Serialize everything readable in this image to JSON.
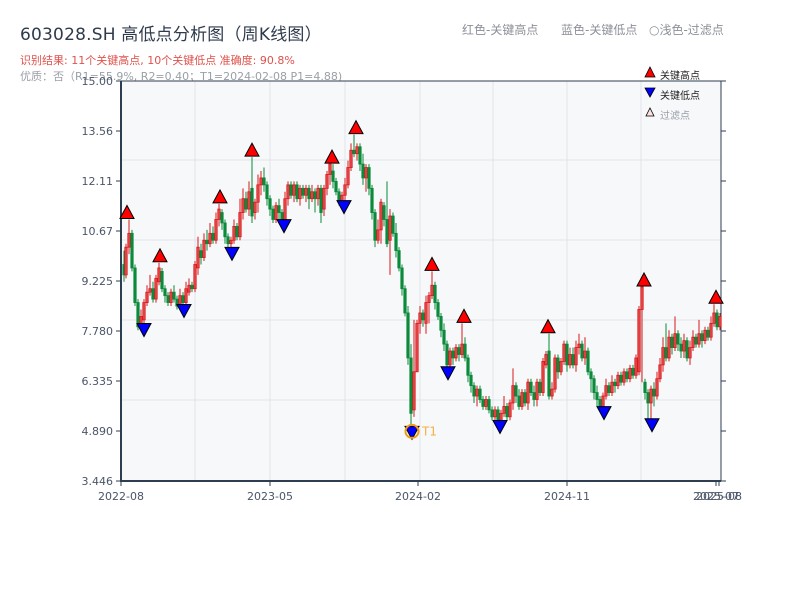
{
  "header": {
    "title": "603028.SH 高低点分析图（周K线图）",
    "result_line": "识别结果: 11个关键高点, 10个关键低点  准确度: 90.8%",
    "quality_line": "优质：否（R1=55.9%, R2=0.40；T1=2024-02-08 P1=4.88)"
  },
  "top_legend": {
    "red": "红色-关键高点",
    "blue": "蓝色-关键低点",
    "light": "○浅色-过滤点"
  },
  "colors": {
    "up": "#d7191c",
    "down": "#0a8a3a",
    "high_marker": "#ff0000",
    "low_marker": "#0000ff",
    "t1_ring": "#f39c12",
    "plot_bg": "#f7f8fa",
    "grid": "#e1e4e8",
    "axis": "#2c3e50"
  },
  "chart_data": {
    "type": "candlestick",
    "title": "603028.SH 高低点分析图（周K线图）",
    "xlabel": "",
    "ylabel": "",
    "ylim": [
      3.446,
      15.0
    ],
    "y_ticks": [
      "15.00",
      "13.56",
      "12.11",
      "10.67",
      "9.225",
      "7.780",
      "6.335",
      "4.890",
      "3.446"
    ],
    "x_ticks": [
      "2022-08",
      "2023-05",
      "2024-02",
      "2024-11",
      "2025-07",
      "2025-08"
    ],
    "legend": [
      {
        "label": "关键高点",
        "marker": "red-up-triangle"
      },
      {
        "label": "关键低点",
        "marker": "blue-down-triangle"
      },
      {
        "label": "过滤点",
        "marker": "light-up-triangle"
      }
    ],
    "annotations": [
      {
        "label": "T1",
        "date": "2024-02-08",
        "price": 4.88
      }
    ],
    "key_highs": [
      {
        "x": 127,
        "price": 11.0
      },
      {
        "x": 160,
        "price": 9.75
      },
      {
        "x": 220,
        "price": 11.45
      },
      {
        "x": 252,
        "price": 12.8
      },
      {
        "x": 332,
        "price": 12.6
      },
      {
        "x": 356,
        "price": 13.45
      },
      {
        "x": 432,
        "price": 9.5
      },
      {
        "x": 464,
        "price": 8.0
      },
      {
        "x": 548,
        "price": 7.7
      },
      {
        "x": 644,
        "price": 9.05
      },
      {
        "x": 716,
        "price": 8.55
      }
    ],
    "key_lows": [
      {
        "x": 144,
        "price": 7.85
      },
      {
        "x": 184,
        "price": 8.4
      },
      {
        "x": 232,
        "price": 10.05
      },
      {
        "x": 284,
        "price": 10.85
      },
      {
        "x": 344,
        "price": 11.4
      },
      {
        "x": 412,
        "price": 4.88
      },
      {
        "x": 448,
        "price": 6.6
      },
      {
        "x": 500,
        "price": 5.05
      },
      {
        "x": 604,
        "price": 5.45
      },
      {
        "x": 652,
        "price": 5.1
      }
    ],
    "candles": [
      [
        124,
        9.7,
        9.4,
        10.1,
        9.2
      ],
      [
        126,
        9.4,
        10.2,
        10.3,
        9.3
      ],
      [
        129,
        10.2,
        10.6,
        11.0,
        10.0
      ],
      [
        132,
        10.6,
        9.6,
        10.7,
        9.5
      ],
      [
        135,
        9.6,
        8.6,
        9.7,
        8.5
      ],
      [
        138,
        8.6,
        7.9,
        8.7,
        7.8
      ],
      [
        141,
        7.9,
        8.2,
        8.4,
        7.8
      ],
      [
        144,
        8.1,
        8.6,
        8.7,
        8.0
      ],
      [
        147,
        8.6,
        8.9,
        9.1,
        8.5
      ],
      [
        150,
        8.9,
        9.0,
        9.4,
        8.8
      ],
      [
        153,
        9.0,
        8.7,
        9.2,
        8.6
      ],
      [
        156,
        8.7,
        9.3,
        9.4,
        8.6
      ],
      [
        159,
        9.2,
        9.6,
        9.75,
        9.1
      ],
      [
        162,
        9.5,
        9.0,
        9.6,
        8.9
      ],
      [
        165,
        9.0,
        8.8,
        9.1,
        8.6
      ],
      [
        168,
        8.8,
        8.6,
        8.9,
        8.5
      ],
      [
        171,
        8.6,
        8.9,
        9.0,
        8.5
      ],
      [
        174,
        8.9,
        8.7,
        9.1,
        8.6
      ],
      [
        177,
        8.7,
        8.5,
        8.8,
        8.4
      ],
      [
        180,
        8.5,
        8.8,
        9.0,
        8.4
      ],
      [
        183,
        8.8,
        8.6,
        8.9,
        8.4
      ],
      [
        186,
        8.6,
        9.0,
        9.2,
        8.5
      ],
      [
        189,
        8.9,
        9.1,
        9.3,
        8.8
      ],
      [
        192,
        9.1,
        9.0,
        9.2,
        8.9
      ],
      [
        195,
        9.0,
        9.7,
        9.8,
        8.9
      ],
      [
        198,
        9.6,
        10.2,
        10.5,
        9.4
      ],
      [
        201,
        10.1,
        9.9,
        10.3,
        9.7
      ],
      [
        204,
        9.9,
        10.4,
        10.6,
        9.8
      ],
      [
        207,
        10.4,
        10.3,
        10.7,
        10.1
      ],
      [
        210,
        10.3,
        10.6,
        10.9,
        10.2
      ],
      [
        213,
        10.6,
        10.4,
        10.8,
        10.3
      ],
      [
        216,
        10.4,
        11.0,
        11.2,
        10.3
      ],
      [
        219,
        11.0,
        11.3,
        11.45,
        10.8
      ],
      [
        222,
        11.2,
        10.9,
        11.3,
        10.7
      ],
      [
        225,
        10.9,
        10.5,
        11.0,
        10.3
      ],
      [
        228,
        10.5,
        10.3,
        10.6,
        10.1
      ],
      [
        231,
        10.3,
        10.4,
        10.5,
        10.05
      ],
      [
        234,
        10.4,
        10.8,
        11.0,
        10.3
      ],
      [
        237,
        10.8,
        10.5,
        10.9,
        10.4
      ],
      [
        240,
        10.5,
        11.2,
        11.6,
        10.4
      ],
      [
        243,
        11.2,
        11.6,
        11.9,
        11.0
      ],
      [
        246,
        11.6,
        11.3,
        11.8,
        11.2
      ],
      [
        249,
        11.3,
        11.8,
        12.1,
        11.1
      ],
      [
        252,
        11.9,
        11.1,
        12.8,
        10.9
      ],
      [
        255,
        11.2,
        11.5,
        11.6,
        11.0
      ],
      [
        258,
        11.5,
        12.0,
        12.3,
        11.2
      ],
      [
        261,
        12.0,
        12.2,
        12.4,
        11.7
      ],
      [
        264,
        12.2,
        12.0,
        12.5,
        11.8
      ],
      [
        267,
        12.0,
        11.6,
        12.1,
        11.4
      ],
      [
        270,
        11.6,
        11.3,
        11.7,
        11.1
      ],
      [
        273,
        11.3,
        11.0,
        11.4,
        10.9
      ],
      [
        276,
        11.0,
        11.4,
        11.5,
        10.9
      ],
      [
        279,
        11.4,
        11.2,
        11.6,
        11.0
      ],
      [
        282,
        11.2,
        11.0,
        11.3,
        10.85
      ],
      [
        285,
        11.0,
        11.6,
        11.8,
        10.9
      ],
      [
        288,
        11.6,
        12.0,
        12.1,
        11.4
      ],
      [
        291,
        12.0,
        11.7,
        12.1,
        11.6
      ],
      [
        294,
        11.7,
        12.0,
        12.1,
        11.5
      ],
      [
        297,
        12.0,
        11.6,
        12.1,
        11.5
      ],
      [
        300,
        11.6,
        11.9,
        12.0,
        11.4
      ],
      [
        303,
        11.9,
        11.7,
        12.0,
        11.6
      ],
      [
        306,
        11.7,
        11.9,
        12.0,
        11.5
      ],
      [
        309,
        11.9,
        11.6,
        12.0,
        11.3
      ],
      [
        312,
        11.6,
        11.8,
        12.0,
        11.5
      ],
      [
        315,
        11.8,
        11.6,
        11.9,
        11.2
      ],
      [
        318,
        11.6,
        11.9,
        12.0,
        11.4
      ],
      [
        321,
        11.9,
        11.2,
        12.0,
        10.9
      ],
      [
        324,
        11.3,
        11.9,
        12.0,
        11.1
      ],
      [
        327,
        11.9,
        12.3,
        12.4,
        11.7
      ],
      [
        330,
        12.3,
        12.6,
        12.6,
        12.0
      ],
      [
        333,
        12.4,
        12.1,
        12.6,
        11.9
      ],
      [
        336,
        12.1,
        11.8,
        12.2,
        11.7
      ],
      [
        339,
        11.8,
        11.5,
        11.9,
        11.4
      ],
      [
        342,
        11.5,
        11.7,
        11.8,
        11.4
      ],
      [
        345,
        11.7,
        12.0,
        12.2,
        11.4
      ],
      [
        348,
        12.0,
        12.5,
        12.7,
        11.9
      ],
      [
        351,
        12.5,
        13.0,
        13.2,
        12.4
      ],
      [
        354,
        13.0,
        12.9,
        13.45,
        12.8
      ],
      [
        357,
        12.9,
        13.1,
        13.2,
        12.7
      ],
      [
        360,
        13.1,
        12.6,
        13.2,
        12.4
      ],
      [
        363,
        12.6,
        12.2,
        12.9,
        12.0
      ],
      [
        366,
        12.2,
        12.5,
        12.6,
        11.8
      ],
      [
        369,
        12.5,
        11.9,
        12.6,
        11.7
      ],
      [
        372,
        11.9,
        11.2,
        12.0,
        11.0
      ],
      [
        375,
        11.2,
        10.4,
        11.3,
        10.2
      ],
      [
        378,
        10.4,
        10.7,
        11.0,
        10.3
      ],
      [
        381,
        10.7,
        11.5,
        11.6,
        10.3
      ],
      [
        384,
        11.4,
        11.0,
        11.5,
        10.8
      ],
      [
        387,
        11.0,
        10.3,
        12.1,
        10.2
      ],
      [
        390,
        10.4,
        11.1,
        11.3,
        9.4
      ],
      [
        393,
        11.1,
        10.6,
        11.2,
        10.5
      ],
      [
        396,
        10.6,
        10.1,
        10.9,
        9.9
      ],
      [
        399,
        10.1,
        9.6,
        10.2,
        9.5
      ],
      [
        402,
        9.6,
        9.0,
        9.7,
        8.8
      ],
      [
        405,
        9.0,
        8.3,
        9.1,
        8.2
      ],
      [
        408,
        8.3,
        7.0,
        8.5,
        6.8
      ],
      [
        411,
        7.0,
        5.4,
        7.4,
        4.88
      ],
      [
        414,
        5.5,
        6.6,
        8.1,
        5.3
      ],
      [
        417,
        6.6,
        8.0,
        8.1,
        7.8
      ],
      [
        420,
        8.0,
        8.3,
        8.5,
        7.7
      ],
      [
        423,
        8.3,
        8.1,
        8.4,
        7.9
      ],
      [
        426,
        8.0,
        8.6,
        8.8,
        7.7
      ],
      [
        429,
        8.6,
        8.8,
        8.9,
        8.0
      ],
      [
        432,
        8.8,
        9.1,
        9.5,
        8.7
      ],
      [
        435,
        9.1,
        8.6,
        9.2,
        8.4
      ],
      [
        438,
        8.6,
        8.2,
        8.7,
        8.1
      ],
      [
        441,
        8.2,
        7.8,
        8.3,
        7.6
      ],
      [
        444,
        7.8,
        7.4,
        8.0,
        7.2
      ],
      [
        447,
        7.4,
        6.8,
        7.5,
        6.6
      ],
      [
        450,
        6.8,
        7.2,
        7.3,
        6.6
      ],
      [
        453,
        7.2,
        7.0,
        7.3,
        6.8
      ],
      [
        456,
        7.0,
        7.3,
        7.4,
        6.9
      ],
      [
        459,
        7.3,
        7.1,
        7.4,
        6.9
      ],
      [
        462,
        7.1,
        7.4,
        8.0,
        7.0
      ],
      [
        465,
        7.4,
        7.0,
        7.6,
        6.9
      ],
      [
        468,
        7.0,
        6.5,
        7.1,
        6.3
      ],
      [
        471,
        6.5,
        6.2,
        6.6,
        6.0
      ],
      [
        474,
        6.2,
        5.9,
        6.3,
        5.7
      ],
      [
        477,
        5.9,
        6.1,
        6.2,
        5.6
      ],
      [
        480,
        6.1,
        5.8,
        6.2,
        5.7
      ],
      [
        483,
        5.8,
        5.6,
        5.9,
        5.5
      ],
      [
        486,
        5.6,
        5.8,
        5.9,
        5.5
      ],
      [
        489,
        5.8,
        5.5,
        5.9,
        5.4
      ],
      [
        492,
        5.5,
        5.3,
        5.6,
        5.2
      ],
      [
        495,
        5.3,
        5.5,
        5.6,
        5.1
      ],
      [
        498,
        5.5,
        5.2,
        5.6,
        5.05
      ],
      [
        501,
        5.2,
        5.4,
        5.5,
        5.1
      ],
      [
        504,
        5.4,
        5.6,
        5.9,
        5.3
      ],
      [
        507,
        5.6,
        5.3,
        5.7,
        5.2
      ],
      [
        510,
        5.3,
        5.7,
        5.8,
        5.2
      ],
      [
        513,
        5.7,
        6.2,
        6.7,
        5.5
      ],
      [
        516,
        6.2,
        5.9,
        6.3,
        5.7
      ],
      [
        519,
        5.9,
        5.6,
        6.1,
        5.5
      ],
      [
        522,
        5.6,
        6.0,
        6.1,
        5.5
      ],
      [
        525,
        6.0,
        5.7,
        6.1,
        5.6
      ],
      [
        528,
        5.7,
        6.3,
        6.4,
        5.5
      ],
      [
        531,
        6.3,
        6.0,
        6.4,
        5.9
      ],
      [
        534,
        6.0,
        5.8,
        6.2,
        5.6
      ],
      [
        537,
        5.8,
        6.3,
        6.4,
        5.6
      ],
      [
        540,
        6.3,
        6.0,
        6.4,
        5.9
      ],
      [
        543,
        6.0,
        6.9,
        7.0,
        5.9
      ],
      [
        546,
        6.8,
        7.1,
        7.2,
        6.7
      ],
      [
        549,
        7.2,
        5.9,
        7.7,
        5.8
      ],
      [
        552,
        5.9,
        6.1,
        6.3,
        5.8
      ],
      [
        555,
        6.1,
        7.0,
        7.1,
        6.0
      ],
      [
        558,
        7.0,
        6.6,
        7.1,
        6.4
      ],
      [
        561,
        6.6,
        6.9,
        7.0,
        6.5
      ],
      [
        564,
        6.9,
        7.4,
        7.5,
        6.8
      ],
      [
        567,
        7.4,
        6.8,
        7.5,
        6.6
      ],
      [
        570,
        6.8,
        7.1,
        7.3,
        6.7
      ],
      [
        573,
        7.1,
        6.8,
        7.3,
        6.7
      ],
      [
        576,
        6.8,
        7.3,
        7.5,
        6.6
      ],
      [
        579,
        7.3,
        7.4,
        7.7,
        7.1
      ],
      [
        582,
        7.4,
        7.0,
        7.5,
        6.9
      ],
      [
        585,
        7.0,
        7.2,
        7.6,
        6.8
      ],
      [
        588,
        7.2,
        6.6,
        7.3,
        6.5
      ],
      [
        591,
        6.6,
        6.4,
        6.7,
        6.0
      ],
      [
        594,
        6.4,
        6.0,
        6.5,
        5.8
      ],
      [
        597,
        6.0,
        5.8,
        6.2,
        5.6
      ],
      [
        600,
        5.8,
        5.6,
        5.9,
        5.5
      ],
      [
        603,
        5.6,
        5.9,
        6.0,
        5.5
      ],
      [
        606,
        5.9,
        6.2,
        6.4,
        5.8
      ],
      [
        609,
        6.2,
        6.0,
        6.3,
        5.9
      ],
      [
        612,
        6.0,
        6.3,
        6.5,
        5.9
      ],
      [
        615,
        6.3,
        6.2,
        6.4,
        6.0
      ],
      [
        618,
        6.2,
        6.5,
        6.6,
        6.1
      ],
      [
        621,
        6.5,
        6.3,
        6.6,
        6.2
      ],
      [
        624,
        6.3,
        6.6,
        6.7,
        6.2
      ],
      [
        627,
        6.6,
        6.4,
        6.7,
        6.3
      ],
      [
        630,
        6.4,
        6.7,
        6.8,
        6.3
      ],
      [
        633,
        6.7,
        6.5,
        6.8,
        6.4
      ],
      [
        636,
        6.5,
        7.0,
        7.1,
        6.4
      ],
      [
        639,
        6.6,
        8.4,
        8.5,
        6.5
      ],
      [
        642,
        8.4,
        9.05,
        9.05,
        6.3
      ],
      [
        645,
        6.3,
        6.0,
        6.4,
        5.8
      ],
      [
        648,
        6.0,
        5.7,
        6.1,
        5.1
      ],
      [
        651,
        5.7,
        6.1,
        6.2,
        5.1
      ],
      [
        654,
        6.1,
        5.9,
        6.3,
        5.6
      ],
      [
        657,
        5.9,
        6.4,
        6.6,
        5.8
      ],
      [
        660,
        6.4,
        6.8,
        7.0,
        6.3
      ],
      [
        663,
        6.8,
        7.3,
        7.6,
        6.6
      ],
      [
        666,
        7.3,
        7.0,
        8.0,
        6.9
      ],
      [
        669,
        7.0,
        7.6,
        7.8,
        6.9
      ],
      [
        672,
        7.6,
        7.3,
        7.7,
        7.1
      ],
      [
        675,
        7.3,
        7.7,
        8.2,
        7.2
      ],
      [
        678,
        7.7,
        7.4,
        7.8,
        7.2
      ],
      [
        681,
        7.4,
        7.2,
        7.6,
        7.0
      ],
      [
        684,
        7.2,
        7.5,
        7.7,
        7.0
      ],
      [
        687,
        7.5,
        7.0,
        7.6,
        6.9
      ],
      [
        690,
        7.0,
        7.3,
        7.5,
        6.8
      ],
      [
        693,
        7.3,
        7.6,
        7.8,
        7.2
      ],
      [
        696,
        7.6,
        7.4,
        7.7,
        7.3
      ],
      [
        699,
        7.4,
        7.7,
        8.1,
        7.3
      ],
      [
        702,
        7.7,
        7.5,
        7.8,
        7.3
      ],
      [
        705,
        7.5,
        7.8,
        7.9,
        7.4
      ],
      [
        708,
        7.8,
        7.6,
        7.9,
        7.5
      ],
      [
        711,
        7.6,
        8.0,
        8.2,
        7.5
      ],
      [
        714,
        8.0,
        8.3,
        8.55,
        7.9
      ],
      [
        717,
        8.3,
        7.9,
        8.4,
        7.8
      ],
      [
        720,
        7.9,
        8.2,
        8.3,
        7.8
      ]
    ]
  }
}
